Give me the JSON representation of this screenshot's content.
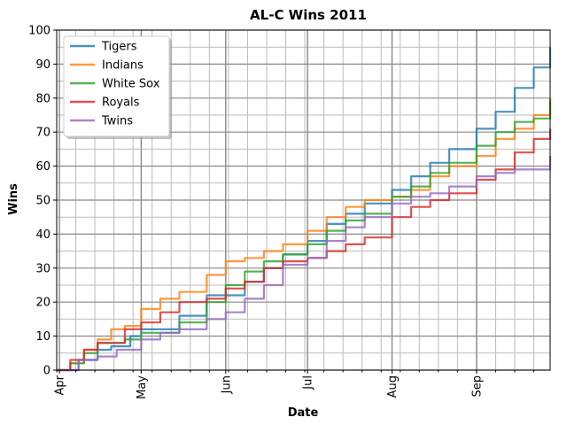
{
  "chart_data": {
    "type": "line",
    "title": "AL-C Wins 2011",
    "xlabel": "Date",
    "ylabel": "Wins",
    "x_range": [
      "2011-03-31",
      "2011-09-28"
    ],
    "ylim": [
      0,
      100
    ],
    "yticks": [
      0,
      10,
      20,
      30,
      40,
      50,
      60,
      70,
      80,
      90,
      100
    ],
    "xticks": [
      {
        "date": "2011-04-01",
        "label": "Apr"
      },
      {
        "date": "2011-05-01",
        "label": "May"
      },
      {
        "date": "2011-06-01",
        "label": "Jun"
      },
      {
        "date": "2011-07-01",
        "label": "Jul"
      },
      {
        "date": "2011-08-01",
        "label": "Aug"
      },
      {
        "date": "2011-09-01",
        "label": "Sep"
      }
    ],
    "grid": true,
    "legend_position": "top-left",
    "series": [
      {
        "name": "Tigers",
        "color": "#1f77b4",
        "points": [
          [
            "2011-03-31",
            0
          ],
          [
            "2011-04-08",
            3
          ],
          [
            "2011-04-15",
            6
          ],
          [
            "2011-04-20",
            7
          ],
          [
            "2011-04-27",
            10
          ],
          [
            "2011-05-01",
            12
          ],
          [
            "2011-05-08",
            12
          ],
          [
            "2011-05-15",
            16
          ],
          [
            "2011-05-25",
            22
          ],
          [
            "2011-06-01",
            22
          ],
          [
            "2011-06-08",
            26
          ],
          [
            "2011-06-15",
            30
          ],
          [
            "2011-06-22",
            34
          ],
          [
            "2011-07-01",
            38
          ],
          [
            "2011-07-08",
            43
          ],
          [
            "2011-07-15",
            46
          ],
          [
            "2011-07-22",
            49
          ],
          [
            "2011-08-01",
            53
          ],
          [
            "2011-08-08",
            57
          ],
          [
            "2011-08-15",
            61
          ],
          [
            "2011-08-22",
            65
          ],
          [
            "2011-09-01",
            71
          ],
          [
            "2011-09-08",
            76
          ],
          [
            "2011-09-15",
            83
          ],
          [
            "2011-09-22",
            89
          ],
          [
            "2011-09-28",
            95
          ]
        ]
      },
      {
        "name": "Indians",
        "color": "#ff7f0e",
        "points": [
          [
            "2011-03-31",
            0
          ],
          [
            "2011-04-05",
            2
          ],
          [
            "2011-04-10",
            6
          ],
          [
            "2011-04-15",
            9
          ],
          [
            "2011-04-20",
            12
          ],
          [
            "2011-04-25",
            13
          ],
          [
            "2011-05-01",
            18
          ],
          [
            "2011-05-08",
            21
          ],
          [
            "2011-05-15",
            23
          ],
          [
            "2011-05-25",
            28
          ],
          [
            "2011-06-01",
            32
          ],
          [
            "2011-06-08",
            33
          ],
          [
            "2011-06-15",
            35
          ],
          [
            "2011-06-22",
            37
          ],
          [
            "2011-07-01",
            41
          ],
          [
            "2011-07-08",
            45
          ],
          [
            "2011-07-15",
            48
          ],
          [
            "2011-07-22",
            50
          ],
          [
            "2011-08-01",
            51
          ],
          [
            "2011-08-08",
            53
          ],
          [
            "2011-08-15",
            57
          ],
          [
            "2011-08-22",
            60
          ],
          [
            "2011-09-01",
            63
          ],
          [
            "2011-09-08",
            68
          ],
          [
            "2011-09-15",
            71
          ],
          [
            "2011-09-22",
            75
          ],
          [
            "2011-09-28",
            80
          ]
        ]
      },
      {
        "name": "White Sox",
        "color": "#2ca02c",
        "points": [
          [
            "2011-03-31",
            0
          ],
          [
            "2011-04-05",
            2
          ],
          [
            "2011-04-10",
            5
          ],
          [
            "2011-04-15",
            8
          ],
          [
            "2011-04-25",
            9
          ],
          [
            "2011-05-01",
            11
          ],
          [
            "2011-05-08",
            11
          ],
          [
            "2011-05-15",
            14
          ],
          [
            "2011-05-25",
            20
          ],
          [
            "2011-06-01",
            25
          ],
          [
            "2011-06-08",
            29
          ],
          [
            "2011-06-15",
            32
          ],
          [
            "2011-06-22",
            34
          ],
          [
            "2011-07-01",
            37
          ],
          [
            "2011-07-08",
            41
          ],
          [
            "2011-07-15",
            44
          ],
          [
            "2011-07-22",
            46
          ],
          [
            "2011-08-01",
            51
          ],
          [
            "2011-08-08",
            54
          ],
          [
            "2011-08-15",
            58
          ],
          [
            "2011-08-22",
            61
          ],
          [
            "2011-09-01",
            66
          ],
          [
            "2011-09-08",
            70
          ],
          [
            "2011-09-15",
            73
          ],
          [
            "2011-09-22",
            74
          ],
          [
            "2011-09-28",
            79
          ]
        ]
      },
      {
        "name": "Royals",
        "color": "#d62728",
        "points": [
          [
            "2011-03-31",
            0
          ],
          [
            "2011-04-05",
            3
          ],
          [
            "2011-04-10",
            6
          ],
          [
            "2011-04-15",
            8
          ],
          [
            "2011-04-25",
            12
          ],
          [
            "2011-05-01",
            14
          ],
          [
            "2011-05-08",
            17
          ],
          [
            "2011-05-15",
            20
          ],
          [
            "2011-05-25",
            21
          ],
          [
            "2011-06-01",
            24
          ],
          [
            "2011-06-08",
            26
          ],
          [
            "2011-06-15",
            30
          ],
          [
            "2011-06-22",
            32
          ],
          [
            "2011-07-01",
            33
          ],
          [
            "2011-07-08",
            35
          ],
          [
            "2011-07-15",
            37
          ],
          [
            "2011-07-22",
            39
          ],
          [
            "2011-08-01",
            45
          ],
          [
            "2011-08-08",
            48
          ],
          [
            "2011-08-15",
            50
          ],
          [
            "2011-08-22",
            52
          ],
          [
            "2011-09-01",
            56
          ],
          [
            "2011-09-08",
            59
          ],
          [
            "2011-09-15",
            64
          ],
          [
            "2011-09-22",
            68
          ],
          [
            "2011-09-28",
            71
          ]
        ]
      },
      {
        "name": "Twins",
        "color": "#9467bd",
        "points": [
          [
            "2011-03-31",
            0
          ],
          [
            "2011-04-08",
            3
          ],
          [
            "2011-04-15",
            4
          ],
          [
            "2011-04-22",
            6
          ],
          [
            "2011-05-01",
            9
          ],
          [
            "2011-05-08",
            11
          ],
          [
            "2011-05-15",
            12
          ],
          [
            "2011-05-25",
            15
          ],
          [
            "2011-06-01",
            17
          ],
          [
            "2011-06-08",
            21
          ],
          [
            "2011-06-15",
            25
          ],
          [
            "2011-06-22",
            31
          ],
          [
            "2011-07-01",
            33
          ],
          [
            "2011-07-08",
            38
          ],
          [
            "2011-07-15",
            42
          ],
          [
            "2011-07-22",
            45
          ],
          [
            "2011-08-01",
            49
          ],
          [
            "2011-08-08",
            51
          ],
          [
            "2011-08-15",
            52
          ],
          [
            "2011-08-22",
            54
          ],
          [
            "2011-09-01",
            57
          ],
          [
            "2011-09-08",
            58
          ],
          [
            "2011-09-15",
            59
          ],
          [
            "2011-09-22",
            59
          ],
          [
            "2011-09-28",
            63
          ]
        ]
      }
    ]
  }
}
